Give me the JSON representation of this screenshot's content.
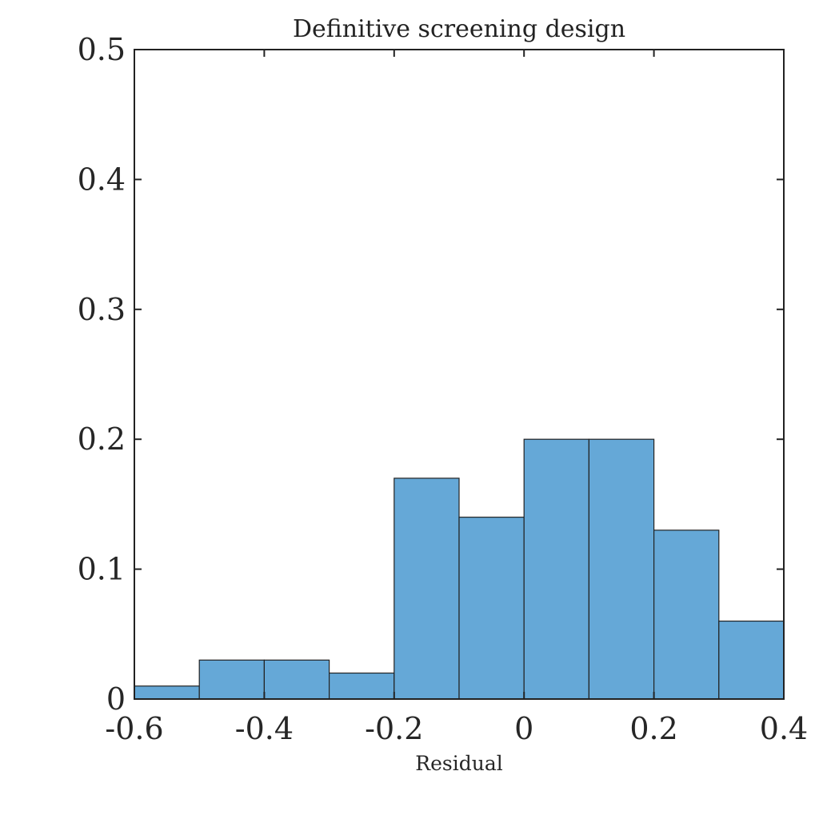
{
  "chart_data": {
    "type": "bar",
    "title": "Definitive screening design",
    "xlabel": "Residual",
    "ylabel": "",
    "xlim": [
      -0.6,
      0.4
    ],
    "ylim": [
      0,
      0.5
    ],
    "bin_edges": [
      -0.6,
      -0.5,
      -0.4,
      -0.3,
      -0.2,
      -0.1,
      0,
      0.1,
      0.2,
      0.3,
      0.4
    ],
    "values": [
      0.01,
      0.03,
      0.03,
      0.02,
      0.17,
      0.14,
      0.2,
      0.2,
      0.13,
      0.06
    ],
    "x_ticks": [
      -0.6,
      -0.4,
      -0.2,
      0,
      0.2,
      0.4
    ],
    "x_tick_labels": [
      "-0.6",
      "-0.4",
      "-0.2",
      "0",
      "0.2",
      "0.4"
    ],
    "y_ticks": [
      0,
      0.1,
      0.2,
      0.3,
      0.4,
      0.5
    ],
    "y_tick_labels": [
      "0",
      "0.1",
      "0.2",
      "0.3",
      "0.4",
      "0.5"
    ],
    "bar_color": "#65a8d7",
    "bar_edge_color": "#222222",
    "grid": false
  }
}
